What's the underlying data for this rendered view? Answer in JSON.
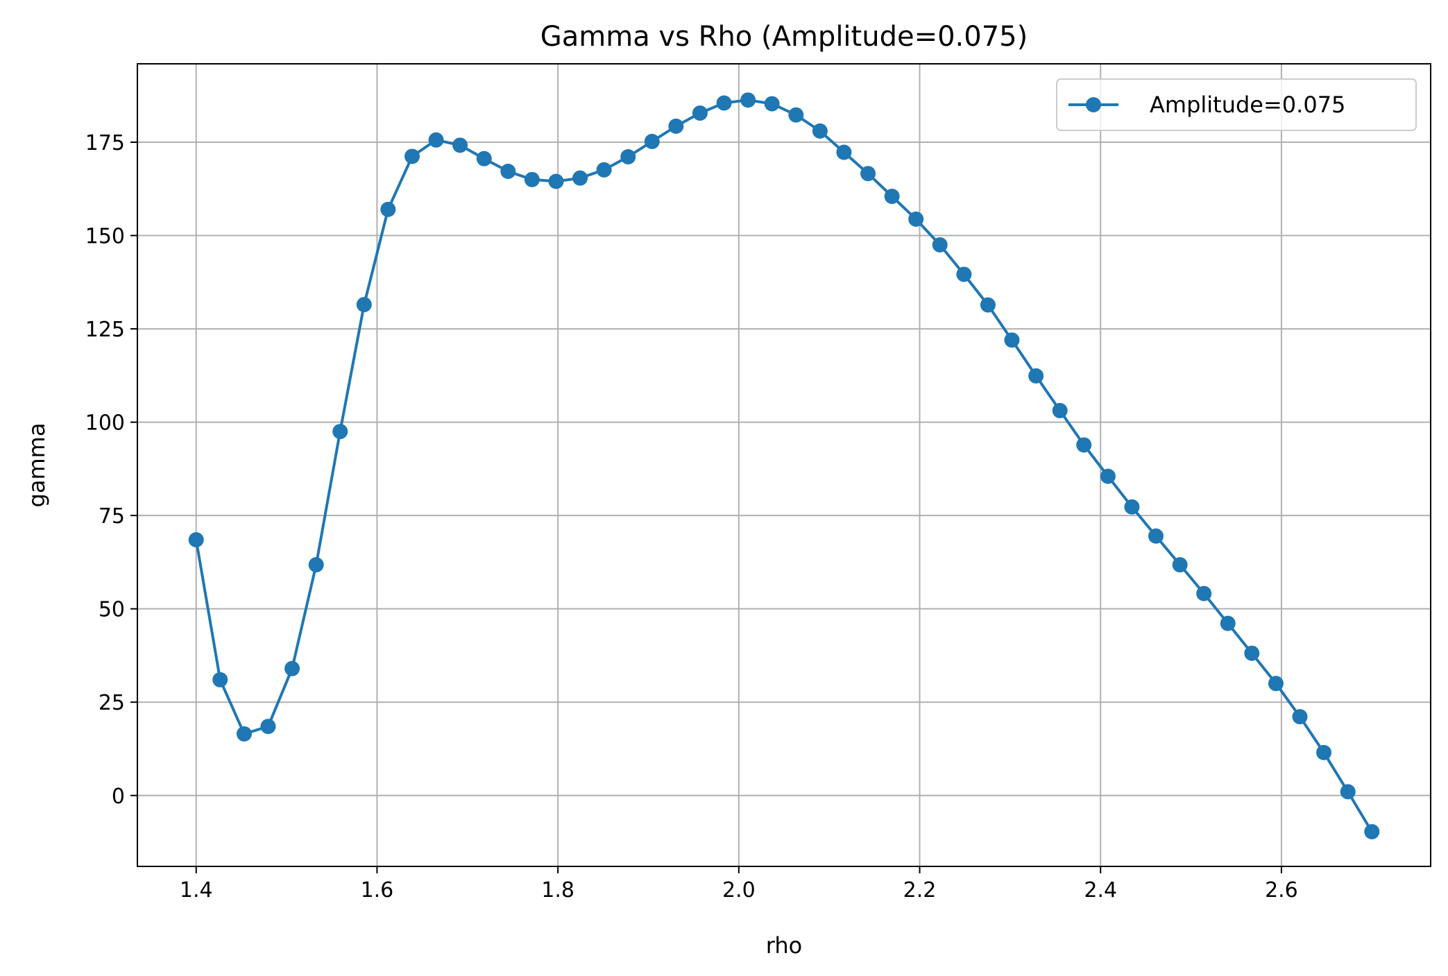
{
  "chart_data": {
    "type": "line",
    "title": "Gamma vs Rho (Amplitude=0.075)",
    "xlabel": "rho",
    "ylabel": "gamma",
    "xlim": [
      1.335,
      2.765
    ],
    "ylim": [
      -19,
      196
    ],
    "xticks": [
      1.4,
      1.6,
      1.8,
      2.0,
      2.2,
      2.4,
      2.6
    ],
    "xtick_labels": [
      "1.4",
      "1.6",
      "1.8",
      "2.0",
      "2.2",
      "2.4",
      "2.6"
    ],
    "yticks": [
      0,
      25,
      50,
      75,
      100,
      125,
      150,
      175
    ],
    "ytick_labels": [
      "0",
      "25",
      "50",
      "75",
      "100",
      "125",
      "150",
      "175"
    ],
    "grid": true,
    "legend_position": "top-right",
    "series": [
      {
        "name": "Amplitude=0.075",
        "color": "#1f77b4",
        "marker": "circle",
        "x": [
          1.4,
          1.4265,
          1.4531,
          1.4796,
          1.5061,
          1.5327,
          1.5592,
          1.5857,
          1.6122,
          1.6388,
          1.6653,
          1.6918,
          1.7184,
          1.7449,
          1.7714,
          1.798,
          1.8245,
          1.851,
          1.8776,
          1.9041,
          1.9306,
          1.9571,
          1.9837,
          2.0102,
          2.0367,
          2.0633,
          2.0898,
          2.1163,
          2.1429,
          2.1694,
          2.1959,
          2.2224,
          2.249,
          2.2755,
          2.302,
          2.3286,
          2.3551,
          2.3816,
          2.4082,
          2.4347,
          2.4612,
          2.4878,
          2.5143,
          2.5408,
          2.5673,
          2.5939,
          2.6204,
          2.6469,
          2.6735,
          2.7
        ],
        "y": [
          68.5,
          31,
          16.5,
          18.5,
          34,
          61.8,
          97.5,
          131.5,
          157,
          171.2,
          175.6,
          174.2,
          170.6,
          167.2,
          165,
          164.5,
          165.4,
          167.6,
          171.1,
          175.2,
          179.3,
          182.8,
          185.5,
          186.3,
          185.3,
          182.3,
          178,
          172.3,
          166.6,
          160.5,
          154.4,
          147.5,
          139.6,
          131.4,
          122,
          112.4,
          103.1,
          93.9,
          85.5,
          77.3,
          69.5,
          61.8,
          54.1,
          46.1,
          38.1,
          30,
          21.1,
          11.5,
          1,
          -9.7
        ]
      }
    ]
  }
}
